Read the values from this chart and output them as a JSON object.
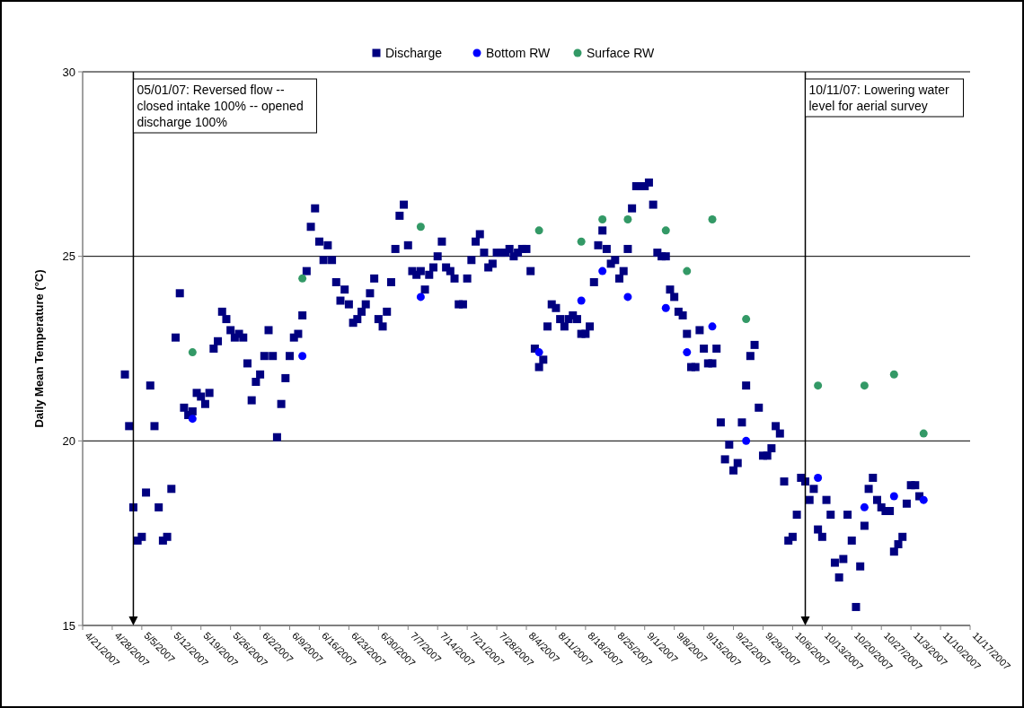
{
  "chart_data": {
    "type": "scatter",
    "ylabel": "Daily Mean Temperature (°C)",
    "xlim": [
      "2007-04-21",
      "2007-11-17"
    ],
    "xticks": [
      {
        "value": "2007-04-21",
        "label": "4/21/2007"
      },
      {
        "value": "2007-04-28",
        "label": "4/28/2007"
      },
      {
        "value": "2007-05-05",
        "label": "5/5/2007"
      },
      {
        "value": "2007-05-12",
        "label": "5/12/2007"
      },
      {
        "value": "2007-05-19",
        "label": "5/19/2007"
      },
      {
        "value": "2007-05-26",
        "label": "5/26/2007"
      },
      {
        "value": "2007-06-02",
        "label": "6/2/2007"
      },
      {
        "value": "2007-06-09",
        "label": "6/9/2007"
      },
      {
        "value": "2007-06-16",
        "label": "6/16/2007"
      },
      {
        "value": "2007-06-23",
        "label": "6/23/2007"
      },
      {
        "value": "2007-06-30",
        "label": "6/30/2007"
      },
      {
        "value": "2007-07-07",
        "label": "7/7/2007"
      },
      {
        "value": "2007-07-14",
        "label": "7/14/2007"
      },
      {
        "value": "2007-07-21",
        "label": "7/21/2007"
      },
      {
        "value": "2007-07-28",
        "label": "7/28/2007"
      },
      {
        "value": "2007-08-04",
        "label": "8/4/2007"
      },
      {
        "value": "2007-08-11",
        "label": "8/11/2007"
      },
      {
        "value": "2007-08-18",
        "label": "8/18/2007"
      },
      {
        "value": "2007-08-25",
        "label": "8/25/2007"
      },
      {
        "value": "2007-09-01",
        "label": "9/1/2007"
      },
      {
        "value": "2007-09-08",
        "label": "9/8/2007"
      },
      {
        "value": "2007-09-15",
        "label": "9/15/2007"
      },
      {
        "value": "2007-09-22",
        "label": "9/22/2007"
      },
      {
        "value": "2007-09-29",
        "label": "9/29/2007"
      },
      {
        "value": "2007-10-06",
        "label": "10/6/2007"
      },
      {
        "value": "2007-10-13",
        "label": "10/13/2007"
      },
      {
        "value": "2007-10-20",
        "label": "10/20/2007"
      },
      {
        "value": "2007-10-27",
        "label": "10/27/2007"
      },
      {
        "value": "2007-11-03",
        "label": "11/3/2007"
      },
      {
        "value": "2007-11-10",
        "label": "11/10/2007"
      },
      {
        "value": "2007-11-17",
        "label": "11/17/2007"
      }
    ],
    "ylim": [
      15,
      30
    ],
    "yticks": [
      15,
      20,
      25,
      30
    ],
    "grid": "y",
    "legend": "top",
    "ref_lines": [
      {
        "axis": "x",
        "value": "2007-05-03",
        "label": "05/01/07: Reversed flow -- closed intake 100% -- opened discharge 100%"
      },
      {
        "axis": "x",
        "value": "2007-10-09",
        "label": "10/11/07: Lowering water level for aerial survey"
      }
    ],
    "series": [
      {
        "name": "Discharge",
        "color": "#000080",
        "marker": "square",
        "x": [
          "2007-05-01",
          "2007-05-02",
          "2007-05-03",
          "2007-05-04",
          "2007-05-05",
          "2007-05-06",
          "2007-05-07",
          "2007-05-08",
          "2007-05-09",
          "2007-05-10",
          "2007-05-11",
          "2007-05-12",
          "2007-05-13",
          "2007-05-14",
          "2007-05-15",
          "2007-05-16",
          "2007-05-17",
          "2007-05-18",
          "2007-05-19",
          "2007-05-20",
          "2007-05-21",
          "2007-05-22",
          "2007-05-23",
          "2007-05-24",
          "2007-05-25",
          "2007-05-26",
          "2007-05-27",
          "2007-05-28",
          "2007-05-29",
          "2007-05-30",
          "2007-05-31",
          "2007-06-01",
          "2007-06-02",
          "2007-06-03",
          "2007-06-04",
          "2007-06-05",
          "2007-06-06",
          "2007-06-07",
          "2007-06-08",
          "2007-06-09",
          "2007-06-10",
          "2007-06-11",
          "2007-06-12",
          "2007-06-13",
          "2007-06-14",
          "2007-06-15",
          "2007-06-16",
          "2007-06-17",
          "2007-06-18",
          "2007-06-19",
          "2007-06-20",
          "2007-06-21",
          "2007-06-22",
          "2007-06-23",
          "2007-06-24",
          "2007-06-25",
          "2007-06-26",
          "2007-06-27",
          "2007-06-28",
          "2007-06-29",
          "2007-06-30",
          "2007-07-01",
          "2007-07-02",
          "2007-07-03",
          "2007-07-04",
          "2007-07-05",
          "2007-07-06",
          "2007-07-07",
          "2007-07-08",
          "2007-07-09",
          "2007-07-10",
          "2007-07-11",
          "2007-07-12",
          "2007-07-13",
          "2007-07-14",
          "2007-07-15",
          "2007-07-16",
          "2007-07-17",
          "2007-07-18",
          "2007-07-19",
          "2007-07-20",
          "2007-07-21",
          "2007-07-22",
          "2007-07-23",
          "2007-07-24",
          "2007-07-25",
          "2007-07-26",
          "2007-07-27",
          "2007-07-28",
          "2007-07-29",
          "2007-07-30",
          "2007-07-31",
          "2007-08-01",
          "2007-08-02",
          "2007-08-03",
          "2007-08-04",
          "2007-08-05",
          "2007-08-06",
          "2007-08-07",
          "2007-08-08",
          "2007-08-09",
          "2007-08-10",
          "2007-08-11",
          "2007-08-12",
          "2007-08-13",
          "2007-08-14",
          "2007-08-15",
          "2007-08-16",
          "2007-08-17",
          "2007-08-18",
          "2007-08-19",
          "2007-08-20",
          "2007-08-21",
          "2007-08-22",
          "2007-08-23",
          "2007-08-24",
          "2007-08-25",
          "2007-08-26",
          "2007-08-27",
          "2007-08-28",
          "2007-08-29",
          "2007-08-30",
          "2007-08-31",
          "2007-09-01",
          "2007-09-02",
          "2007-09-03",
          "2007-09-04",
          "2007-09-05",
          "2007-09-06",
          "2007-09-07",
          "2007-09-08",
          "2007-09-09",
          "2007-09-10",
          "2007-09-11",
          "2007-09-12",
          "2007-09-13",
          "2007-09-14",
          "2007-09-15",
          "2007-09-16",
          "2007-09-17",
          "2007-09-18",
          "2007-09-19",
          "2007-09-20",
          "2007-09-21",
          "2007-09-22",
          "2007-09-23",
          "2007-09-24",
          "2007-09-25",
          "2007-09-26",
          "2007-09-27",
          "2007-09-28",
          "2007-09-29",
          "2007-09-30",
          "2007-10-01",
          "2007-10-02",
          "2007-10-03",
          "2007-10-04",
          "2007-10-05",
          "2007-10-06",
          "2007-10-07",
          "2007-10-08",
          "2007-10-09",
          "2007-10-10",
          "2007-10-11",
          "2007-10-12",
          "2007-10-13",
          "2007-10-14",
          "2007-10-15",
          "2007-10-16",
          "2007-10-17",
          "2007-10-18",
          "2007-10-19",
          "2007-10-20",
          "2007-10-21",
          "2007-10-22",
          "2007-10-23",
          "2007-10-24",
          "2007-10-25",
          "2007-10-26",
          "2007-10-27",
          "2007-10-28",
          "2007-10-29",
          "2007-10-30",
          "2007-10-31",
          "2007-11-01",
          "2007-11-02",
          "2007-11-03",
          "2007-11-04",
          "2007-11-05"
        ],
        "values": [
          21.8,
          20.4,
          18.2,
          17.3,
          17.4,
          18.6,
          21.5,
          20.4,
          18.2,
          17.3,
          17.4,
          18.7,
          22.8,
          24.0,
          20.9,
          20.7,
          20.8,
          21.3,
          21.2,
          21.0,
          21.3,
          22.5,
          22.7,
          23.5,
          23.3,
          23.0,
          22.8,
          22.9,
          22.8,
          22.1,
          21.1,
          21.6,
          21.8,
          22.3,
          23.0,
          22.3,
          20.1,
          21.0,
          21.7,
          22.3,
          22.8,
          22.9,
          23.4,
          24.6,
          25.8,
          26.3,
          25.4,
          24.9,
          25.3,
          24.9,
          24.3,
          23.8,
          24.1,
          23.7,
          23.2,
          23.3,
          23.5,
          23.7,
          24.0,
          24.4,
          23.3,
          23.1,
          23.5,
          24.3,
          25.2,
          26.1,
          26.4,
          25.3,
          24.6,
          24.5,
          24.6,
          24.1,
          24.5,
          24.7,
          25.0,
          25.4,
          24.7,
          24.6,
          24.4,
          23.7,
          23.7,
          24.4,
          24.9,
          25.4,
          25.6,
          25.1,
          24.7,
          24.8,
          25.1,
          25.1,
          25.1,
          25.2,
          25.0,
          25.1,
          25.2,
          25.2,
          24.6,
          22.5,
          22.0,
          22.2,
          23.1,
          23.7,
          23.6,
          23.3,
          23.1,
          23.3,
          23.4,
          23.3,
          22.9,
          22.9,
          23.1,
          24.3,
          25.3,
          25.7,
          25.2,
          24.8,
          24.9,
          24.4,
          24.6,
          25.2,
          26.3,
          26.9,
          26.9,
          26.9,
          27.0,
          26.4,
          25.1,
          25.0,
          25.0,
          24.1,
          23.9,
          23.5,
          23.4,
          22.9,
          22.0,
          22.0,
          23.0,
          22.5,
          22.1,
          22.1,
          22.5,
          20.5,
          19.5,
          19.9,
          19.2,
          19.4,
          20.5,
          21.5,
          22.3,
          22.6,
          20.9,
          19.6,
          19.6,
          19.8,
          20.4,
          20.2,
          18.9,
          17.3,
          17.4,
          18.0,
          19.0,
          18.9,
          18.4,
          18.7,
          17.6,
          17.4,
          18.4,
          18.0,
          16.7,
          16.3,
          16.8,
          18.0,
          17.3,
          15.5,
          16.6,
          17.7,
          18.7,
          19.0,
          18.4,
          18.2,
          18.1,
          18.1,
          17.0,
          17.2,
          17.4,
          18.3,
          18.8,
          18.8,
          18.5
        ]
      },
      {
        "name": "Bottom RW",
        "color": "#0000ff",
        "marker": "circle",
        "x": [
          "2007-05-17",
          "2007-06-12",
          "2007-07-10",
          "2007-08-07",
          "2007-08-17",
          "2007-08-22",
          "2007-08-28",
          "2007-09-06",
          "2007-09-11",
          "2007-09-17",
          "2007-09-25",
          "2007-10-12",
          "2007-10-23",
          "2007-10-30",
          "2007-11-06"
        ],
        "values": [
          20.6,
          22.3,
          23.9,
          22.4,
          23.8,
          24.6,
          23.9,
          23.6,
          22.4,
          23.1,
          20.0,
          19.0,
          18.2,
          18.5,
          18.4
        ]
      },
      {
        "name": "Surface RW",
        "color": "#339966",
        "marker": "circle",
        "x": [
          "2007-05-17",
          "2007-06-12",
          "2007-07-10",
          "2007-08-07",
          "2007-08-17",
          "2007-08-22",
          "2007-08-28",
          "2007-09-06",
          "2007-09-11",
          "2007-09-17",
          "2007-09-25",
          "2007-10-12",
          "2007-10-23",
          "2007-10-30",
          "2007-11-06"
        ],
        "values": [
          22.4,
          24.4,
          25.8,
          25.7,
          25.4,
          26.0,
          26.0,
          25.7,
          24.6,
          26.0,
          23.3,
          21.5,
          21.5,
          21.8,
          20.2
        ]
      }
    ]
  }
}
